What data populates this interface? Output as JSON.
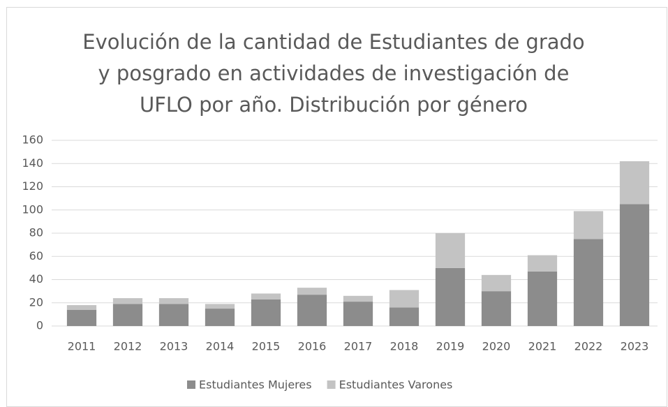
{
  "chart_data": {
    "type": "stacked_bar",
    "title": [
      "Evolución de la cantidad de Estudiantes de grado",
      "y posgrado en actividades de investigación de",
      "UFLO por año. Distribución por género"
    ],
    "categories": [
      "2011",
      "2012",
      "2013",
      "2014",
      "2015",
      "2016",
      "2017",
      "2018",
      "2019",
      "2020",
      "2021",
      "2022",
      "2023"
    ],
    "series": [
      {
        "name": "Estudiantes Mujeres",
        "color": "#8c8c8c",
        "values": [
          14,
          19,
          19,
          15,
          23,
          27,
          21,
          16,
          50,
          30,
          47,
          75,
          105
        ]
      },
      {
        "name": "Estudiantes Varones",
        "color": "#c3c3c3",
        "values": [
          4,
          5,
          5,
          4,
          5,
          6,
          5,
          15,
          30,
          14,
          14,
          24,
          37
        ]
      }
    ],
    "ylim": [
      0,
      160
    ],
    "yticks": [
      0,
      20,
      40,
      60,
      80,
      100,
      120,
      140,
      160
    ],
    "grid": true,
    "legend": "bottom"
  }
}
